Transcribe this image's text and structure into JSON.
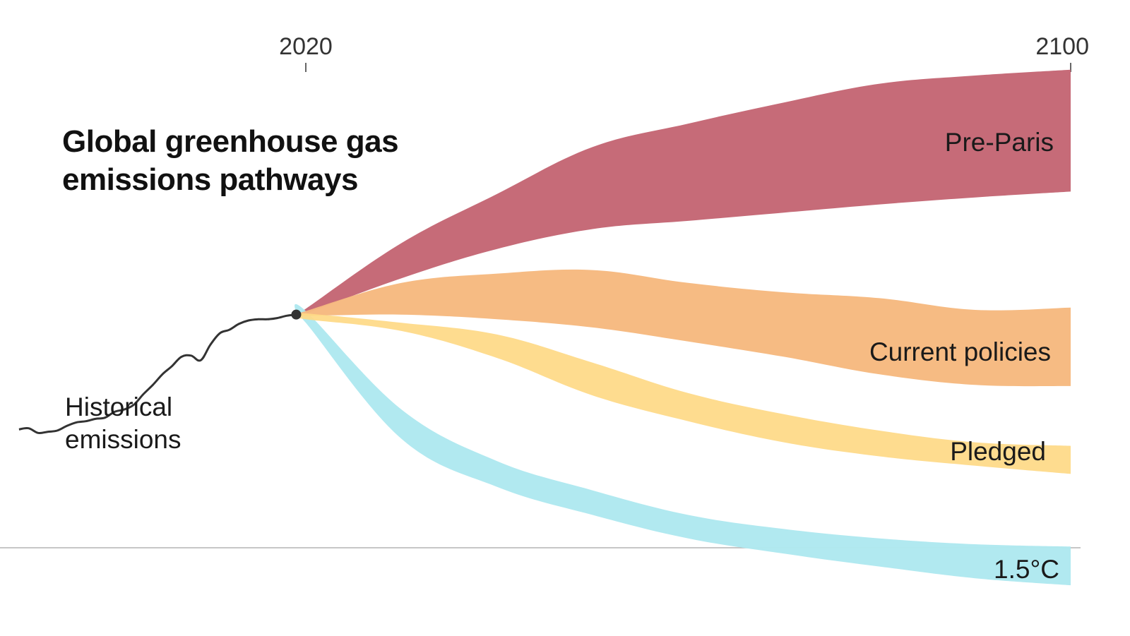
{
  "chart_data": {
    "type": "area",
    "title": "Global greenhouse gas emissions pathways",
    "x_ticks": [
      2020,
      2100
    ],
    "x_range": [
      1990,
      2100
    ],
    "y_range": [
      0,
      33
    ],
    "baseline_y": 0,
    "historical": {
      "name": "Historical emissions",
      "label_lines": [
        "Historical",
        "emissions"
      ],
      "color": "#333333",
      "x": [
        1990,
        1991,
        1992,
        1993,
        1994,
        1995,
        1996,
        1997,
        1998,
        1999,
        2000,
        2001,
        2002,
        2003,
        2004,
        2005,
        2006,
        2007,
        2008,
        2009,
        2010,
        2011,
        2012,
        2013,
        2014,
        2015,
        2016,
        2017,
        2018,
        2019
      ],
      "y": [
        10.1,
        10.2,
        9.8,
        9.9,
        10.0,
        10.4,
        10.7,
        10.8,
        11.0,
        11.1,
        11.6,
        11.8,
        12.2,
        13.1,
        13.9,
        14.8,
        15.5,
        16.3,
        16.4,
        16.0,
        17.3,
        18.3,
        18.6,
        19.1,
        19.4,
        19.5,
        19.5,
        19.6,
        19.8,
        19.9
      ]
    },
    "series": [
      {
        "name": "Pre-Paris",
        "color": "#c46674",
        "x": [
          2019,
          2020,
          2030,
          2040,
          2050,
          2060,
          2070,
          2080,
          2090,
          2100
        ],
        "low": [
          19.9,
          20.0,
          23.0,
          25.5,
          27.2,
          27.9,
          28.6,
          29.3,
          29.9,
          30.4
        ],
        "high": [
          19.9,
          20.4,
          26.0,
          30.2,
          34.2,
          36.2,
          38.0,
          39.6,
          40.3,
          40.8
        ]
      },
      {
        "name": "Current policies",
        "color": "#f6b97f",
        "x": [
          2019,
          2020,
          2030,
          2040,
          2050,
          2060,
          2070,
          2080,
          2090,
          2100
        ],
        "low": [
          19.9,
          19.8,
          19.9,
          19.5,
          18.8,
          17.6,
          16.3,
          14.8,
          13.9,
          13.8
        ],
        "high": [
          19.9,
          20.2,
          22.6,
          23.4,
          23.7,
          22.6,
          21.8,
          21.3,
          20.3,
          20.5
        ]
      },
      {
        "name": "Pledged",
        "color": "#fed986",
        "x": [
          2019,
          2020,
          2030,
          2040,
          2050,
          2060,
          2070,
          2080,
          2090,
          2100
        ],
        "low": [
          19.8,
          19.5,
          18.5,
          16.2,
          13.0,
          10.8,
          9.0,
          7.8,
          7.0,
          6.3
        ],
        "high": [
          19.9,
          20.0,
          19.2,
          18.2,
          15.8,
          13.2,
          11.4,
          10.0,
          9.0,
          8.7
        ]
      },
      {
        "name": "1.5°C",
        "color": "#aee8f0",
        "x": [
          2019,
          2020,
          2030,
          2040,
          2050,
          2060,
          2070,
          2080,
          2090,
          2100
        ],
        "low": [
          19.8,
          19.2,
          9.3,
          5.2,
          2.8,
          0.8,
          -0.5,
          -1.6,
          -2.6,
          -3.2
        ],
        "high": [
          19.9,
          20.2,
          11.8,
          7.4,
          4.9,
          2.8,
          1.6,
          0.8,
          0.3,
          0.1
        ]
      }
    ],
    "grid": false,
    "legend": "inline-labels"
  }
}
